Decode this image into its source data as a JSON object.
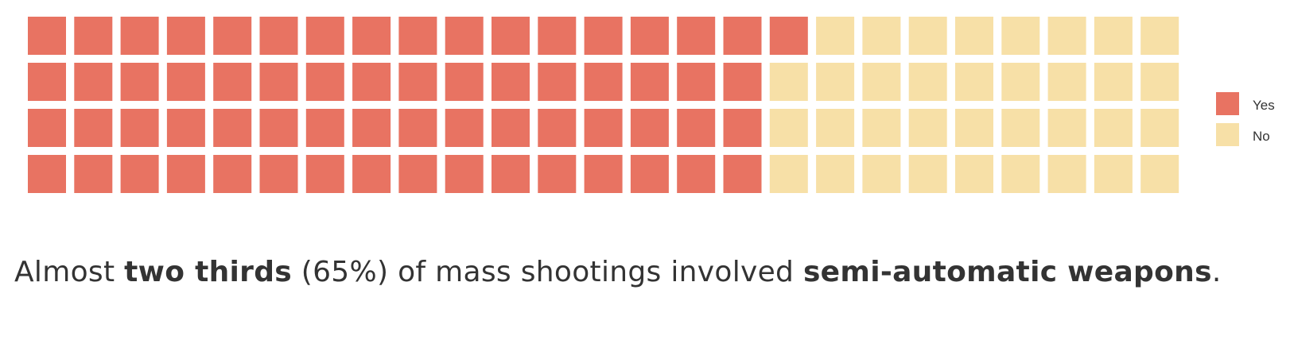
{
  "chart_data": {
    "type": "waffle",
    "rows": 4,
    "columns": 25,
    "total_cells": 100,
    "categories": [
      "Yes",
      "No"
    ],
    "values": [
      65,
      35
    ],
    "colors": {
      "Yes": "#e87362",
      "No": "#f7e0a7"
    },
    "legend": {
      "placement": "right",
      "entries": [
        {
          "label": "Yes",
          "color": "#e87362"
        },
        {
          "label": "No",
          "color": "#f7e0a7"
        }
      ]
    }
  },
  "caption": {
    "part1": "Almost ",
    "bold1": "two thirds",
    "part2": " (65%) of mass shootings involved ",
    "bold2": "semi-automatic weapons",
    "part3": "."
  }
}
